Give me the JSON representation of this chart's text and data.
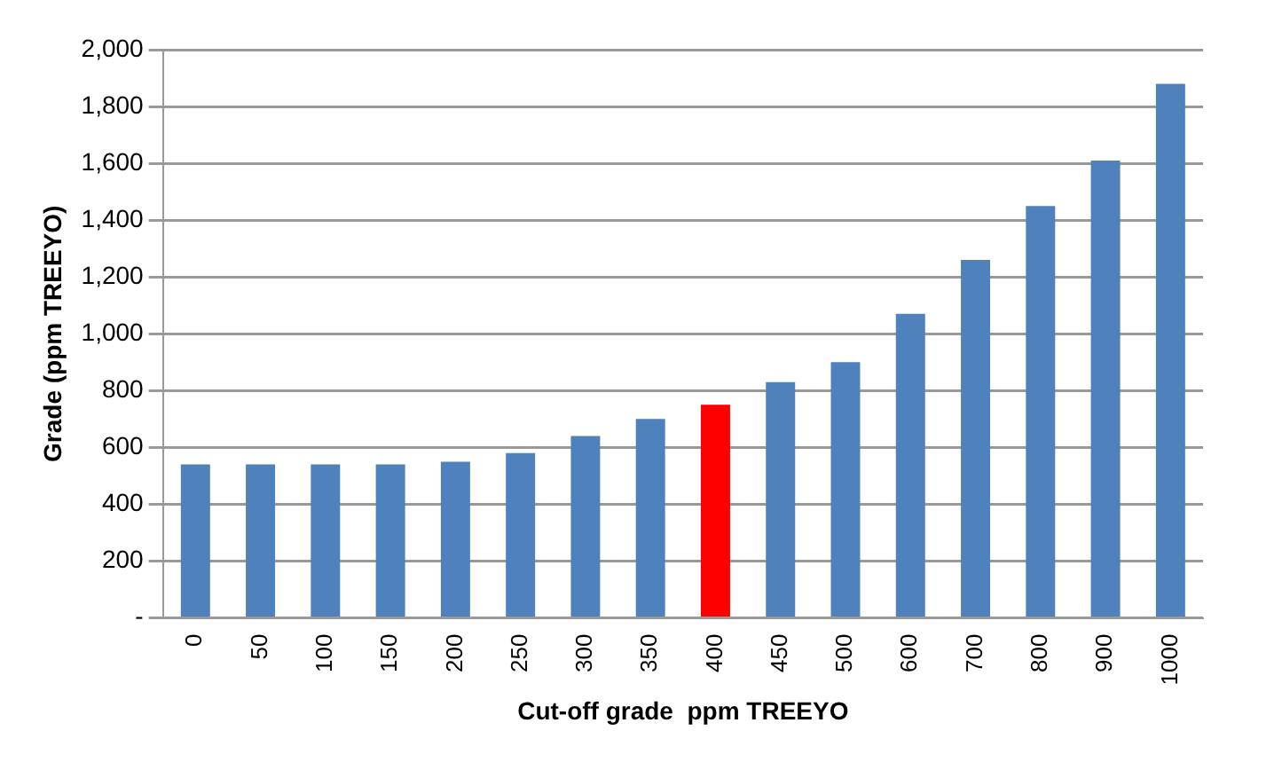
{
  "chart_data": {
    "type": "bar",
    "xlabel": "Cut-off grade  ppm TREEYO",
    "ylabel": "Grade (ppm TREEYO)",
    "categories": [
      "0",
      "50",
      "100",
      "150",
      "200",
      "250",
      "300",
      "350",
      "400",
      "450",
      "500",
      "600",
      "700",
      "800",
      "900",
      "1000"
    ],
    "values": [
      540,
      540,
      540,
      540,
      550,
      580,
      640,
      700,
      750,
      830,
      900,
      1070,
      1260,
      1450,
      1610,
      1880
    ],
    "colors": [
      "#4f81bd",
      "#4f81bd",
      "#4f81bd",
      "#4f81bd",
      "#4f81bd",
      "#4f81bd",
      "#4f81bd",
      "#4f81bd",
      "#ff0000",
      "#4f81bd",
      "#4f81bd",
      "#4f81bd",
      "#4f81bd",
      "#4f81bd",
      "#4f81bd",
      "#4f81bd"
    ],
    "ylim": [
      0,
      2000
    ],
    "yticks": [
      {
        "value": 0,
        "label": "-"
      },
      200,
      400,
      600,
      800,
      {
        "value": 1000,
        "label": "1,000"
      },
      {
        "value": 1200,
        "label": "1,200"
      },
      {
        "value": 1400,
        "label": "1,400"
      },
      {
        "value": 1600,
        "label": "1,600"
      },
      {
        "value": 1800,
        "label": "1,800"
      },
      {
        "value": 2000,
        "label": "2,000"
      }
    ],
    "grid": "y",
    "legend": false
  }
}
